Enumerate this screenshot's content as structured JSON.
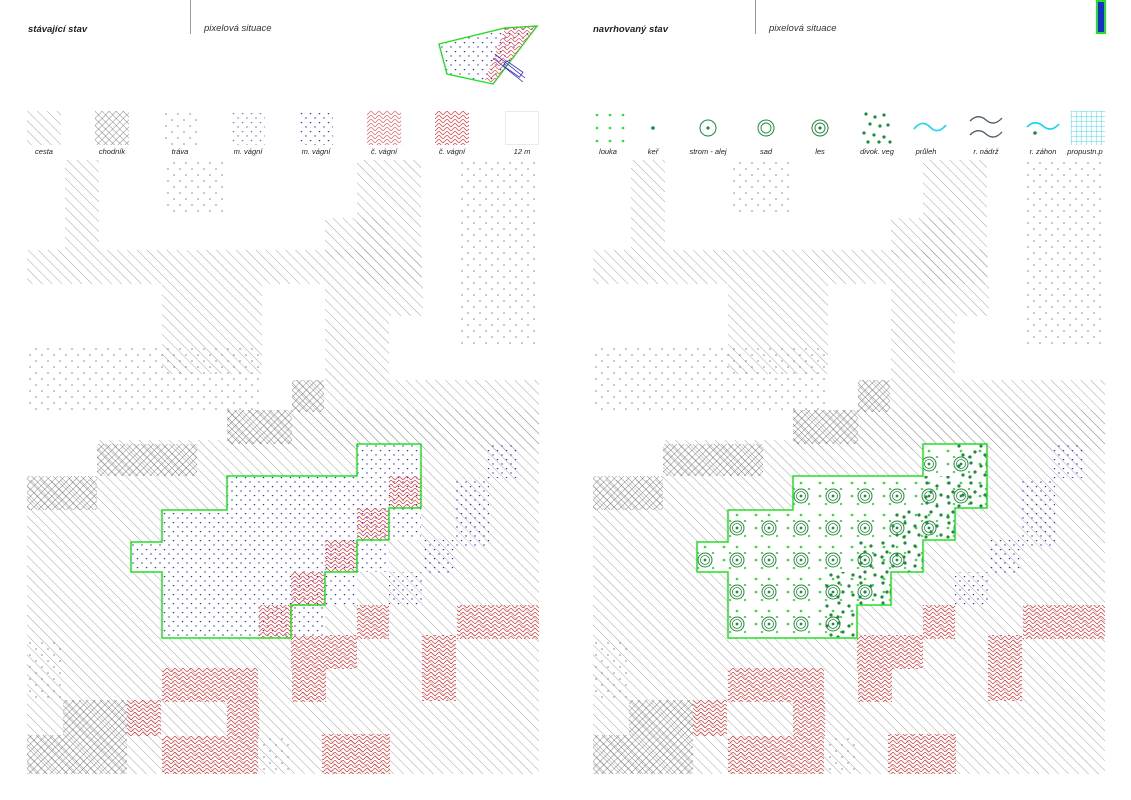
{
  "left_panel": {
    "title": "stávající stav",
    "subtitle": "pixelová situace",
    "legend": [
      {
        "label": "cesta",
        "pattern": "hatch-light"
      },
      {
        "label": "chodník",
        "pattern": "cross"
      },
      {
        "label": "tráva",
        "pattern": "dots-grey"
      },
      {
        "label": "m. vágní",
        "pattern": "vdots-blue"
      },
      {
        "label": "m. vágní",
        "pattern": "vdots-blue2"
      },
      {
        "label": "č. vágní",
        "pattern": "zigzag-red"
      },
      {
        "label": "č. vágní",
        "pattern": "zigzag-red2"
      },
      {
        "label": "12 m",
        "pattern": "empty"
      }
    ]
  },
  "right_panel": {
    "title": "navrhovaný stav",
    "subtitle": "pixelová situace",
    "legend": [
      {
        "label": "louka",
        "icon": "meadow-dots-icon"
      },
      {
        "label": "keř",
        "icon": "shrub-dot-icon"
      },
      {
        "label": "strom - alej",
        "icon": "tree-alley-icon"
      },
      {
        "label": "sad",
        "icon": "orchard-icon"
      },
      {
        "label": "les",
        "icon": "forest-icon"
      },
      {
        "label": "divok. veg",
        "icon": "wild-vegetation-icon"
      },
      {
        "label": "průleh",
        "icon": "swale-wave-icon"
      },
      {
        "label": "r. nádrž",
        "icon": "retention-tank-icon"
      },
      {
        "label": "r. záhon",
        "icon": "rain-garden-icon"
      },
      {
        "label": "propustn.p",
        "icon": "permeable-grid-icon"
      }
    ]
  },
  "colors": {
    "hatch": "#8a8a8a",
    "cross": "#6e6e6e",
    "blue": "#2a2ae0",
    "red": "#e03535",
    "green": "#22e022",
    "darkgreen": "#1f8a3c",
    "cyan": "#19d6f0",
    "slate": "#4a5a6a",
    "badge_blue": "#1a2fd1"
  }
}
